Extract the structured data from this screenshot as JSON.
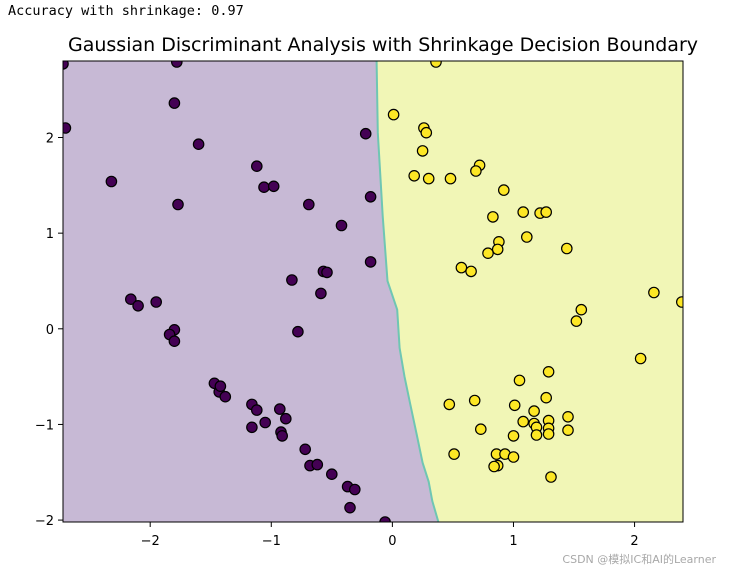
{
  "console": {
    "output_line": "Accuracy with shrinkage: 0.97"
  },
  "watermark": "CSDN @模拟IC和AI的Learner",
  "colors": {
    "class0_region": "#c7b9d5",
    "class1_region": "#f1f6b6",
    "boundary": "#6fc6b3",
    "class0_point": "#440154",
    "class1_point": "#fde725",
    "point_edge": "#000000"
  },
  "chart_data": {
    "type": "scatter",
    "title": "Gaussian Discriminant Analysis with Shrinkage Decision Boundary",
    "xlabel": "",
    "ylabel": "",
    "xlim": [
      -2.72,
      2.4
    ],
    "ylim": [
      -2.02,
      2.8
    ],
    "xticks": [
      {
        "value": -2,
        "label": "−2"
      },
      {
        "value": -1,
        "label": "−1"
      },
      {
        "value": 0,
        "label": "0"
      },
      {
        "value": 1,
        "label": "1"
      },
      {
        "value": 2,
        "label": "2"
      }
    ],
    "yticks": [
      {
        "value": -2,
        "label": "−2"
      },
      {
        "value": -1,
        "label": "−1"
      },
      {
        "value": 0,
        "label": "0"
      },
      {
        "value": 1,
        "label": "1"
      },
      {
        "value": 2,
        "label": "2"
      }
    ],
    "grid": false,
    "decision_boundary": [
      [
        -0.13,
        2.8
      ],
      [
        -0.12,
        2.05
      ],
      [
        -0.08,
        1.18
      ],
      [
        -0.04,
        0.5
      ],
      [
        0.04,
        0.2
      ],
      [
        0.06,
        -0.2
      ],
      [
        0.1,
        -0.5
      ],
      [
        0.15,
        -0.8
      ],
      [
        0.2,
        -1.1
      ],
      [
        0.25,
        -1.4
      ],
      [
        0.3,
        -1.6
      ],
      [
        0.33,
        -1.8
      ],
      [
        0.38,
        -2.02
      ]
    ],
    "series": [
      {
        "class": 0,
        "points": [
          [
            -2.72,
            2.77
          ],
          [
            -2.7,
            2.1
          ],
          [
            -1.78,
            2.79
          ],
          [
            -1.8,
            2.36
          ],
          [
            -1.6,
            1.93
          ],
          [
            -2.32,
            1.54
          ],
          [
            -1.77,
            1.3
          ],
          [
            -1.12,
            1.7
          ],
          [
            -1.06,
            1.48
          ],
          [
            -0.98,
            1.49
          ],
          [
            -0.69,
            1.3
          ],
          [
            -0.42,
            1.08
          ],
          [
            -0.22,
            2.04
          ],
          [
            -0.18,
            1.38
          ],
          [
            -0.18,
            0.7
          ],
          [
            -0.57,
            0.6
          ],
          [
            -0.54,
            0.59
          ],
          [
            -0.83,
            0.51
          ],
          [
            -0.59,
            0.37
          ],
          [
            -0.78,
            -0.03
          ],
          [
            -2.16,
            0.31
          ],
          [
            -2.1,
            0.24
          ],
          [
            -1.95,
            0.28
          ],
          [
            -1.8,
            -0.01
          ],
          [
            -1.84,
            -0.06
          ],
          [
            -1.8,
            -0.13
          ],
          [
            -1.47,
            -0.57
          ],
          [
            -1.43,
            -0.66
          ],
          [
            -1.42,
            -0.6
          ],
          [
            -1.38,
            -0.71
          ],
          [
            -1.16,
            -0.79
          ],
          [
            -1.12,
            -0.85
          ],
          [
            -0.93,
            -0.84
          ],
          [
            -0.88,
            -0.94
          ],
          [
            -1.05,
            -0.98
          ],
          [
            -1.16,
            -1.03
          ],
          [
            -0.92,
            -1.08
          ],
          [
            -0.91,
            -1.12
          ],
          [
            -0.72,
            -1.26
          ],
          [
            -0.68,
            -1.43
          ],
          [
            -0.62,
            -1.42
          ],
          [
            -0.5,
            -1.52
          ],
          [
            -0.37,
            -1.65
          ],
          [
            -0.31,
            -1.68
          ],
          [
            -0.35,
            -1.87
          ],
          [
            -0.06,
            -2.02
          ]
        ]
      },
      {
        "class": 1,
        "points": [
          [
            0.36,
            2.79
          ],
          [
            0.01,
            2.24
          ],
          [
            0.26,
            2.1
          ],
          [
            0.28,
            2.05
          ],
          [
            0.25,
            1.86
          ],
          [
            0.18,
            1.6
          ],
          [
            0.3,
            1.57
          ],
          [
            0.48,
            1.57
          ],
          [
            0.72,
            1.71
          ],
          [
            0.69,
            1.65
          ],
          [
            0.92,
            1.45
          ],
          [
            0.83,
            1.17
          ],
          [
            1.08,
            1.22
          ],
          [
            1.22,
            1.21
          ],
          [
            1.27,
            1.22
          ],
          [
            1.11,
            0.96
          ],
          [
            0.88,
            0.91
          ],
          [
            0.87,
            0.83
          ],
          [
            0.79,
            0.79
          ],
          [
            1.44,
            0.84
          ],
          [
            0.57,
            0.64
          ],
          [
            0.65,
            0.6
          ],
          [
            2.16,
            0.38
          ],
          [
            1.56,
            0.2
          ],
          [
            1.52,
            0.08
          ],
          [
            2.39,
            0.28
          ],
          [
            2.05,
            -0.31
          ],
          [
            1.29,
            -0.45
          ],
          [
            1.05,
            -0.54
          ],
          [
            0.47,
            -0.79
          ],
          [
            0.68,
            -0.75
          ],
          [
            1.01,
            -0.8
          ],
          [
            1.27,
            -0.72
          ],
          [
            1.17,
            -0.86
          ],
          [
            1.08,
            -0.97
          ],
          [
            1.17,
            -0.99
          ],
          [
            1.29,
            -0.96
          ],
          [
            1.45,
            -0.92
          ],
          [
            0.73,
            -1.05
          ],
          [
            1.19,
            -1.03
          ],
          [
            1.29,
            -1.04
          ],
          [
            1.45,
            -1.06
          ],
          [
            1.19,
            -1.11
          ],
          [
            1.29,
            -1.1
          ],
          [
            1.0,
            -1.12
          ],
          [
            0.51,
            -1.31
          ],
          [
            0.86,
            -1.31
          ],
          [
            0.93,
            -1.31
          ],
          [
            1.0,
            -1.34
          ],
          [
            0.87,
            -1.43
          ],
          [
            0.84,
            -1.44
          ],
          [
            1.31,
            -1.55
          ]
        ]
      }
    ]
  }
}
